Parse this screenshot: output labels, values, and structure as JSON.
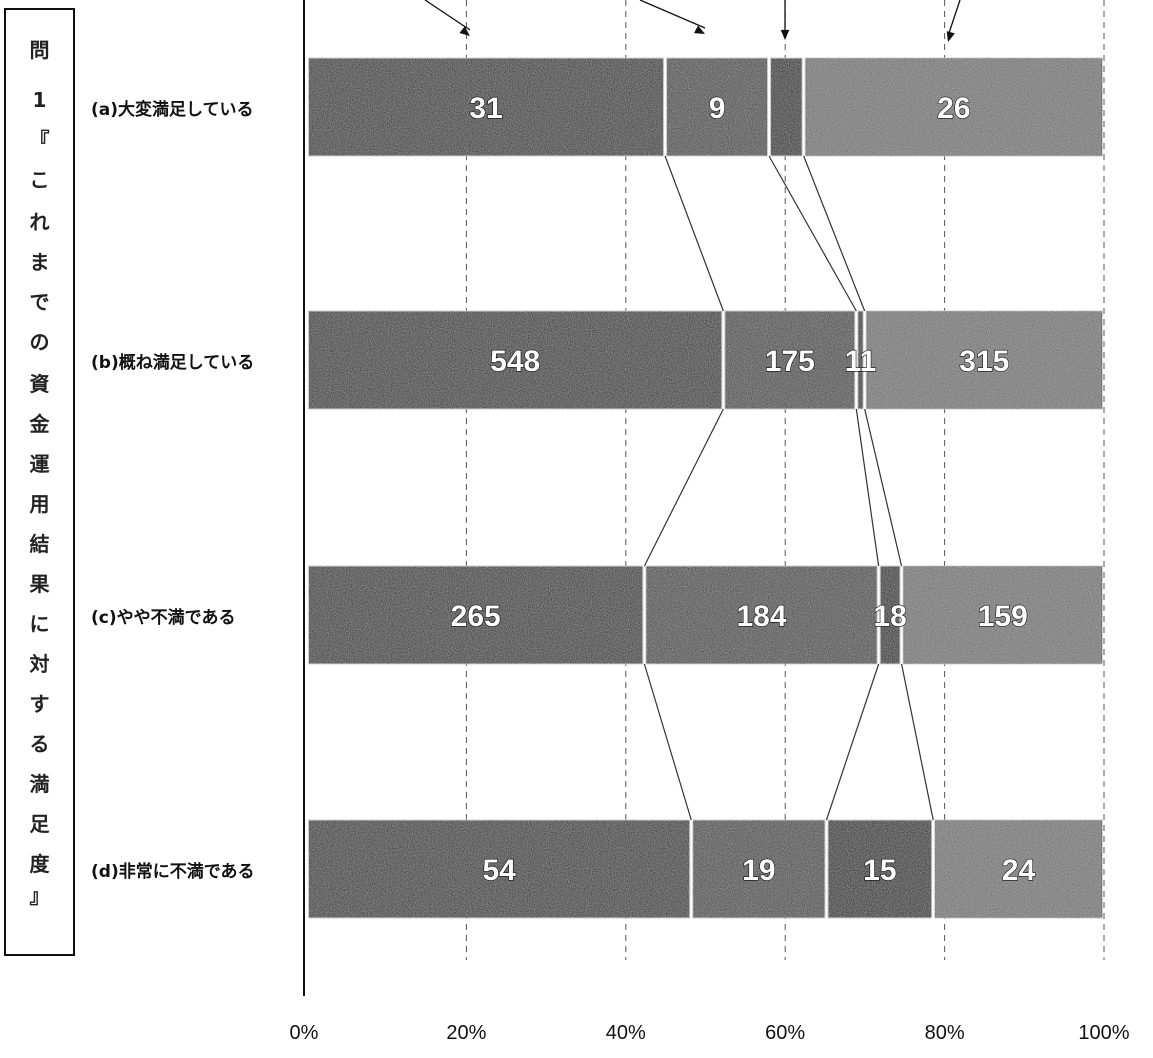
{
  "vertical_title_chars": [
    "問",
    "1",
    "『",
    "こ",
    "れ",
    "ま",
    "で",
    "の",
    "資",
    "金",
    "運",
    "用",
    "結",
    "果",
    "に",
    "対",
    "す",
    "る",
    "満",
    "足",
    "度",
    "』"
  ],
  "chart_data": {
    "type": "bar",
    "orientation": "horizontal",
    "stacked": "percent",
    "categories": [
      "(a)大変満足している",
      "(b)概ね満足している",
      "(c)やや不満である",
      "(d)非常に不満である"
    ],
    "series": [
      {
        "values": [
          31,
          548,
          265,
          54
        ],
        "color": "#1e1e1e",
        "labels": [
          "31",
          "548",
          "265",
          "54"
        ]
      },
      {
        "values": [
          9,
          175,
          184,
          19
        ],
        "color": "#3a3a3a",
        "labels": [
          "9",
          "175",
          "184",
          "19"
        ]
      },
      {
        "values": [
          3,
          11,
          18,
          15
        ],
        "color": "#050505",
        "labels": [
          "",
          "11",
          "18",
          "15"
        ]
      },
      {
        "values": [
          26,
          315,
          159,
          24
        ],
        "color": "#6a6a6a",
        "labels": [
          "26",
          "315",
          "159",
          "24"
        ]
      }
    ],
    "x_ticks": [
      "0%",
      "20%",
      "40%",
      "60%",
      "80%",
      "100%"
    ],
    "xlim": [
      0,
      100
    ],
    "gridlines": "dashed-vertical",
    "series_connectors": true
  }
}
